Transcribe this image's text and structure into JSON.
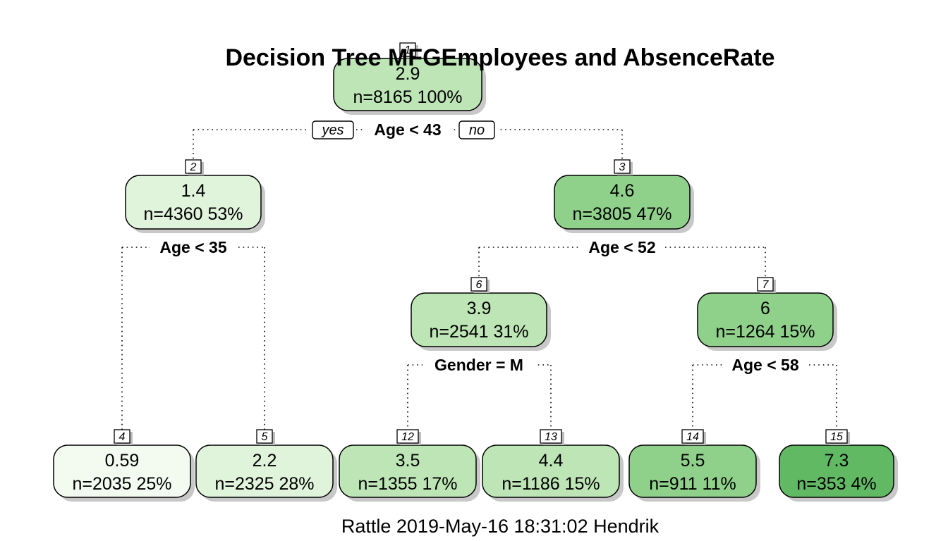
{
  "title": "Decision Tree MFGEmployees and AbsenceRate",
  "footer": "Rattle 2019-May-16 18:31:02 Hendrik",
  "branch_labels": {
    "yes": "yes",
    "no": "no"
  },
  "nodes": [
    {
      "id": "1",
      "value": "2.9",
      "info": "n=8165  100%",
      "fill": "#bde5b5"
    },
    {
      "id": "2",
      "value": "1.4",
      "info": "n=4360  53%",
      "fill": "#e0f3db"
    },
    {
      "id": "3",
      "value": "4.6",
      "info": "n=3805  47%",
      "fill": "#8fd18a"
    },
    {
      "id": "6",
      "value": "3.9",
      "info": "n=2541  31%",
      "fill": "#bde5b5"
    },
    {
      "id": "7",
      "value": "6",
      "info": "n=1264  15%",
      "fill": "#8fd18a"
    },
    {
      "id": "4",
      "value": "0.59",
      "info": "n=2035  25%",
      "fill": "#f3fbf0"
    },
    {
      "id": "5",
      "value": "2.2",
      "info": "n=2325  28%",
      "fill": "#e0f3db"
    },
    {
      "id": "12",
      "value": "3.5",
      "info": "n=1355  17%",
      "fill": "#bde5b5"
    },
    {
      "id": "13",
      "value": "4.4",
      "info": "n=1186  15%",
      "fill": "#bde5b5"
    },
    {
      "id": "14",
      "value": "5.5",
      "info": "n=911  11%",
      "fill": "#8fd18a"
    },
    {
      "id": "15",
      "value": "7.3",
      "info": "n=353  4%",
      "fill": "#62b964"
    }
  ],
  "splits": [
    {
      "from": "1",
      "label": "Age < 43"
    },
    {
      "from": "2",
      "label": "Age < 35"
    },
    {
      "from": "3",
      "label": "Age < 52"
    },
    {
      "from": "6",
      "label": "Gender = M"
    },
    {
      "from": "7",
      "label": "Age < 58"
    }
  ]
}
